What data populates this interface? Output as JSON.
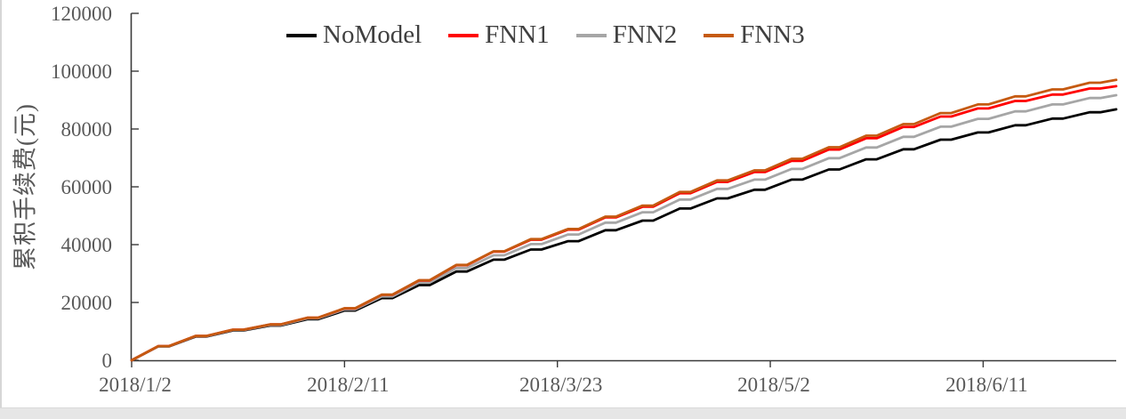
{
  "figure": {
    "background": "#ffffff",
    "bottom_strip_color": "#e6e6e6",
    "left_edge_color": "#d6d6d6"
  },
  "axis_style": {
    "axis_line_color": "#3a3a3a",
    "tick_text_color": "#595959",
    "legend_text_color": "#404040"
  },
  "legend": {
    "items": [
      {
        "label": "NoModel",
        "color": "#000000"
      },
      {
        "label": "FNN1",
        "color": "#ff0000"
      },
      {
        "label": "FNN2",
        "color": "#a6a6a6"
      },
      {
        "label": "FNN3",
        "color": "#c55a11"
      }
    ]
  },
  "chart_data": {
    "type": "line",
    "title": "",
    "xlabel": "",
    "ylabel": "累积手续费(元)",
    "ylim": [
      0,
      120000
    ],
    "x_range_days": [
      0,
      185
    ],
    "grid": false,
    "legend_position": "top-center",
    "y_ticks": [
      {
        "value": 0,
        "label": "0"
      },
      {
        "value": 20000,
        "label": "20000"
      },
      {
        "value": 40000,
        "label": "40000"
      },
      {
        "value": 60000,
        "label": "60000"
      },
      {
        "value": 80000,
        "label": "80000"
      },
      {
        "value": 100000,
        "label": "100000"
      },
      {
        "value": 120000,
        "label": "120000"
      }
    ],
    "x_ticks": [
      {
        "day": 0,
        "label": "2018/1/2"
      },
      {
        "day": 40,
        "label": "2018/2/11"
      },
      {
        "day": 80,
        "label": "2018/3/23"
      },
      {
        "day": 120,
        "label": "2018/5/2"
      },
      {
        "day": 160,
        "label": "2018/6/11"
      }
    ],
    "x_days": [
      0,
      7,
      14,
      21,
      28,
      35,
      42,
      49,
      56,
      63,
      70,
      77,
      84,
      91,
      98,
      105,
      112,
      119,
      126,
      133,
      140,
      147,
      154,
      161,
      168,
      175,
      182,
      185
    ],
    "series": [
      {
        "name": "NoModel",
        "color": "#000000",
        "values": [
          0,
          4800,
          8200,
          10300,
          12000,
          14200,
          17200,
          21500,
          26000,
          30700,
          34800,
          38300,
          41200,
          45000,
          48300,
          52500,
          56000,
          59000,
          62500,
          66000,
          69500,
          73000,
          76300,
          78800,
          81300,
          83600,
          85800,
          86800
        ]
      },
      {
        "name": "FNN1",
        "color": "#ff0000",
        "values": [
          0,
          4900,
          8400,
          10600,
          12400,
          14700,
          17950,
          22650,
          27600,
          32900,
          37600,
          41700,
          45200,
          49400,
          53100,
          57800,
          61700,
          65100,
          69000,
          72900,
          76800,
          80700,
          84300,
          87100,
          89700,
          91900,
          94000,
          94800
        ]
      },
      {
        "name": "FNN2",
        "color": "#a6a6a6",
        "values": [
          0,
          4850,
          8300,
          10450,
          12200,
          14500,
          17600,
          22100,
          26900,
          31900,
          36300,
          40200,
          43500,
          47600,
          51200,
          55600,
          59300,
          62500,
          66200,
          69900,
          73600,
          77300,
          80800,
          83500,
          86100,
          88500,
          90700,
          91700
        ]
      },
      {
        "name": "FNN3",
        "color": "#c55a11",
        "values": [
          0,
          4900,
          8400,
          10600,
          12400,
          14700,
          18000,
          22700,
          27700,
          33000,
          37700,
          41900,
          45400,
          49700,
          53500,
          58200,
          62200,
          65700,
          69700,
          73700,
          77700,
          81700,
          85500,
          88500,
          91300,
          93700,
          96000,
          97000
        ]
      }
    ],
    "weekly_pattern": "each value rises over 5 trading days then stays flat 2 weekend days"
  }
}
